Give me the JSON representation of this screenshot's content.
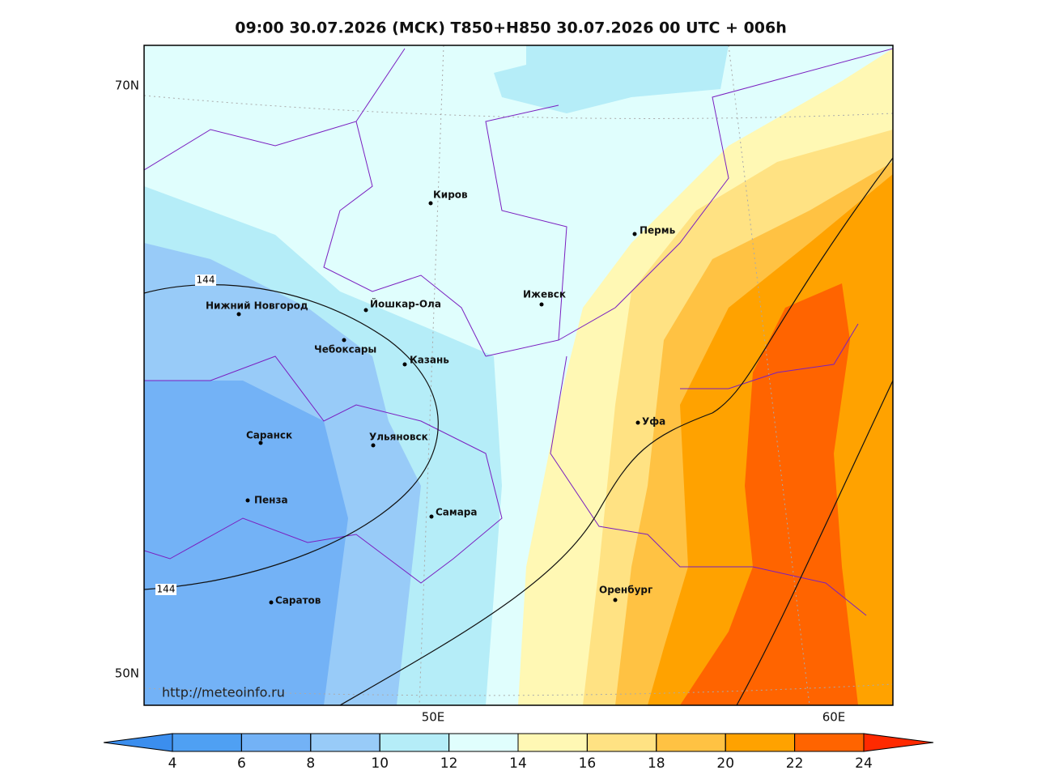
{
  "title": "09:00 30.07.2026 (МСК) T850+H850 30.07.2026 00 UTC + 006h",
  "axis_labels": {
    "lat": [
      "70N",
      "50N"
    ],
    "lon": [
      "50E",
      "60E"
    ]
  },
  "cities": [
    "Киров",
    "Пермь",
    "Нижний Новгород",
    "Йошкар-Ола",
    "Ижевск",
    "Чебоксары",
    "Казань",
    "Саранск",
    "Ульяновск",
    "Уфа",
    "Пенза",
    "Самара",
    "Оренбург",
    "Саратов"
  ],
  "contour_labels": [
    "144",
    "144"
  ],
  "url": "http://meteoinfo.ru",
  "colorbar": {
    "ticks": [
      4,
      6,
      8,
      10,
      12,
      14,
      16,
      18,
      20,
      22,
      24
    ],
    "colors": [
      "#3b8eee",
      "#4fa0f3",
      "#73b2f6",
      "#98cbf8",
      "#b5edf8",
      "#e0fefd",
      "#fff8b4",
      "#ffe283",
      "#ffc243",
      "#ffa200",
      "#ff6400",
      "#ff2a00"
    ]
  }
}
